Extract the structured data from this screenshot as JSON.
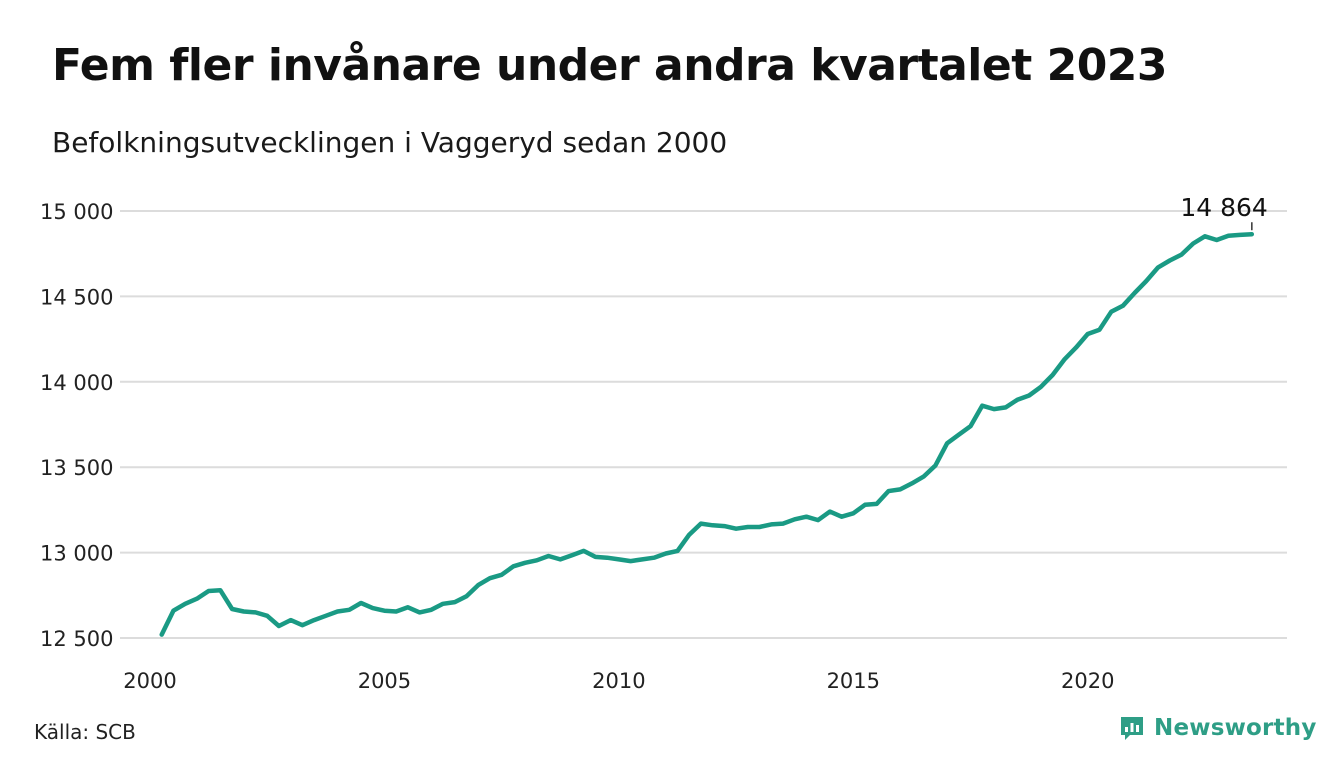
{
  "title": "Fem fler invånare under andra kvartalet 2023",
  "subtitle": "Befolkningsutvecklingen i Vaggeryd sedan 2000",
  "source": "Källa: SCB",
  "brand": {
    "name": "Newsworthy",
    "icon": "newsworthy-logo-icon",
    "color": "#2e9e86"
  },
  "chart_data": {
    "type": "line",
    "title": "Fem fler invånare under andra kvartalet 2023",
    "subtitle": "Befolkningsutvecklingen i Vaggeryd sedan 2000",
    "xlabel": "",
    "ylabel": "",
    "xlim": [
      2000,
      2024.25
    ],
    "ylim": [
      12500,
      15000
    ],
    "xticks": [
      2000,
      2005,
      2010,
      2015,
      2020
    ],
    "yticks": [
      12500,
      13000,
      13500,
      14000,
      14500,
      15000
    ],
    "ytick_labels": [
      "12 500",
      "13 000",
      "13 500",
      "14 000",
      "14 500",
      "15 000"
    ],
    "grid": true,
    "line_color": "#1a9a84",
    "annotation": {
      "x": 2023.5,
      "y": 14864,
      "label": "14 864"
    },
    "series": [
      {
        "x": [
          2000.25,
          2000.5,
          2000.75,
          2001.0,
          2001.25,
          2001.5,
          2001.75,
          2002.0,
          2002.25,
          2002.5,
          2002.75,
          2003.0,
          2003.25,
          2003.5,
          2003.75,
          2004.0,
          2004.25,
          2004.5,
          2004.75,
          2005.0,
          2005.25,
          2005.5,
          2005.75,
          2006.0,
          2006.25,
          2006.5,
          2006.75,
          2007.0,
          2007.25,
          2007.5,
          2007.75,
          2008.0,
          2008.25,
          2008.5,
          2008.75,
          2009.0,
          2009.25,
          2009.5,
          2009.75,
          2010.0,
          2010.25,
          2010.5,
          2010.75,
          2011.0,
          2011.25,
          2011.5,
          2011.75,
          2012.0,
          2012.25,
          2012.5,
          2012.75,
          2013.0,
          2013.25,
          2013.5,
          2013.75,
          2014.0,
          2014.25,
          2014.5,
          2014.75,
          2015.0,
          2015.25,
          2015.5,
          2015.75,
          2016.0,
          2016.25,
          2016.5,
          2016.75,
          2017.0,
          2017.25,
          2017.5,
          2017.75,
          2018.0,
          2018.25,
          2018.5,
          2018.75,
          2019.0,
          2019.25,
          2019.5,
          2019.75,
          2020.0,
          2020.25,
          2020.5,
          2020.75,
          2021.0,
          2021.25,
          2021.5,
          2021.75,
          2022.0,
          2022.25,
          2022.5,
          2022.75,
          2023.0,
          2023.25,
          2023.5
        ],
        "values": [
          12520,
          12660,
          12700,
          12730,
          12775,
          12780,
          12670,
          12655,
          12650,
          12630,
          12570,
          12605,
          12575,
          12605,
          12630,
          12655,
          12665,
          12705,
          12675,
          12660,
          12655,
          12680,
          12650,
          12665,
          12700,
          12710,
          12745,
          12810,
          12850,
          12870,
          12920,
          12940,
          12955,
          12980,
          12960,
          12985,
          13010,
          12975,
          12970,
          12960,
          12950,
          12960,
          12970,
          12995,
          13010,
          13105,
          13170,
          13160,
          13155,
          13140,
          13150,
          13150,
          13165,
          13170,
          13195,
          13210,
          13190,
          13240,
          13210,
          13230,
          13280,
          13285,
          13360,
          13370,
          13405,
          13445,
          13510,
          13640,
          13690,
          13740,
          13860,
          13840,
          13850,
          13895,
          13920,
          13970,
          14040,
          14130,
          14200,
          14280,
          14305,
          14410,
          14445,
          14520,
          14590,
          14670,
          14710,
          14745,
          14810,
          14852,
          14830,
          14855,
          14860,
          14864
        ]
      }
    ]
  }
}
